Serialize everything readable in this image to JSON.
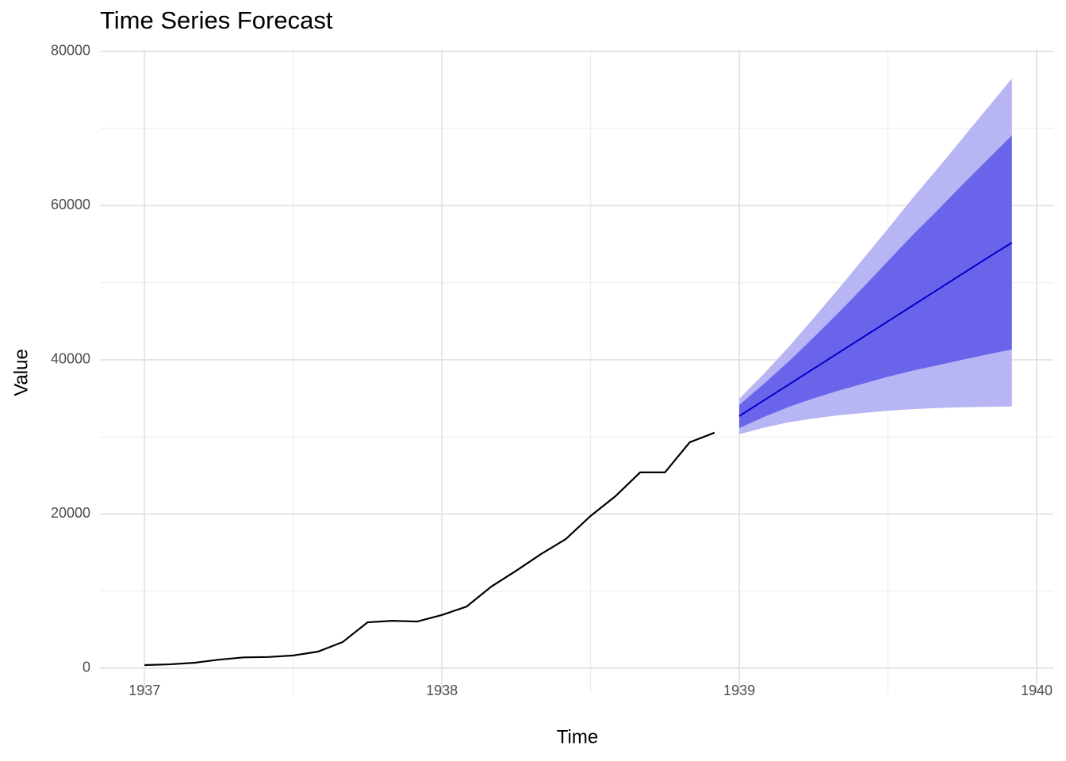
{
  "chart_data": {
    "type": "forecast",
    "title": "Time Series Forecast",
    "x_label": "Time",
    "y_label": "Value",
    "xlim": [
      1936.85,
      1940.056
    ],
    "ylim": [
      -3300,
      80300
    ],
    "xticks": [
      1937,
      1938,
      1939,
      1940
    ],
    "yticks": [
      0,
      20000,
      40000,
      60000,
      80000
    ],
    "xminorticks": [
      1937.5,
      1938.5,
      1939.5
    ],
    "yminorticks": [
      10000,
      30000,
      50000,
      70000
    ],
    "grid": true,
    "observed": {
      "color": "#000000",
      "x": [
        1937,
        1937.0833,
        1937.1667,
        1937.25,
        1937.3333,
        1937.4167,
        1937.5,
        1937.5833,
        1937.6667,
        1937.75,
        1937.8333,
        1937.9167,
        1938,
        1938.0833,
        1938.1667,
        1938.25,
        1938.3333,
        1938.4167,
        1938.5,
        1938.5833,
        1938.6667,
        1938.75,
        1938.8333,
        1938.9167
      ],
      "values": [
        400,
        500,
        700,
        1100,
        1400,
        1450,
        1650,
        2150,
        3400,
        5950,
        6150,
        6050,
        6900,
        8000,
        10600,
        12650,
        14800,
        16750,
        19750,
        22300,
        25400,
        25400,
        29300,
        30550
      ]
    },
    "forecast": {
      "color": "#0000cd",
      "color80": "#6a64ea",
      "color95": "#b7b5f3",
      "x": [
        1939,
        1939.0833,
        1939.1667,
        1939.25,
        1939.3333,
        1939.4167,
        1939.5,
        1939.5833,
        1939.6667,
        1939.75,
        1939.8333,
        1939.9167
      ],
      "mean": [
        32700,
        34750,
        36800,
        38850,
        40900,
        42950,
        45000,
        47050,
        49100,
        51150,
        53200,
        55200
      ],
      "upper95": [
        34950,
        38200,
        41700,
        45400,
        49200,
        53100,
        57000,
        61000,
        64800,
        68700,
        72600,
        76500
      ],
      "upper80": [
        34150,
        36900,
        39800,
        42900,
        46100,
        49400,
        52800,
        56200,
        59400,
        62700,
        65900,
        69100
      ],
      "lower80": [
        31150,
        32600,
        33900,
        35000,
        36000,
        36900,
        37800,
        38600,
        39300,
        40000,
        40700,
        41350
      ],
      "lower95": [
        30350,
        31200,
        31900,
        32400,
        32800,
        33100,
        33400,
        33600,
        33750,
        33850,
        33900,
        33950
      ]
    }
  }
}
